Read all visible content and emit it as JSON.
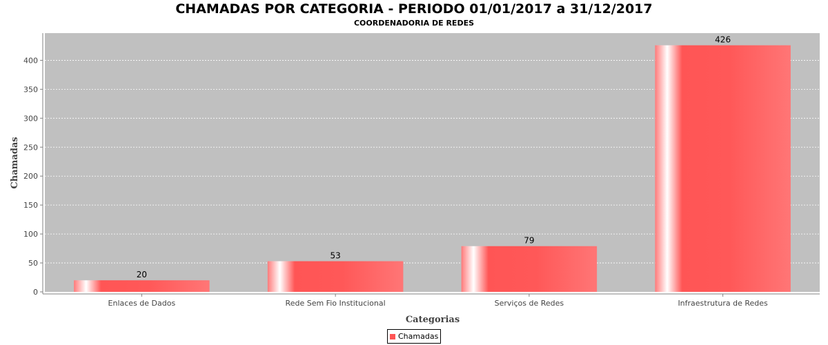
{
  "chart_data": {
    "type": "bar",
    "title": "CHAMADAS POR CATEGORIA - PERIODO 01/01/2017 a 31/12/2017",
    "subtitle": "COORDENADORIA DE REDES",
    "xlabel": "Categorias",
    "ylabel": "Chamadas",
    "categories": [
      "Enlaces de Dados",
      "Rede Sem Fio Institucional",
      "Serviços de Redes",
      "Infraestrutura de Redes"
    ],
    "series": [
      {
        "name": "Chamadas",
        "values": [
          20,
          53,
          79,
          426
        ],
        "color": "#ff5555"
      }
    ],
    "ylim": [
      0,
      447
    ],
    "yticks": [
      0,
      50,
      100,
      150,
      200,
      250,
      300,
      350,
      400
    ],
    "grid": true,
    "legend_position": "bottom",
    "plot_background": "#c0c0c0"
  }
}
